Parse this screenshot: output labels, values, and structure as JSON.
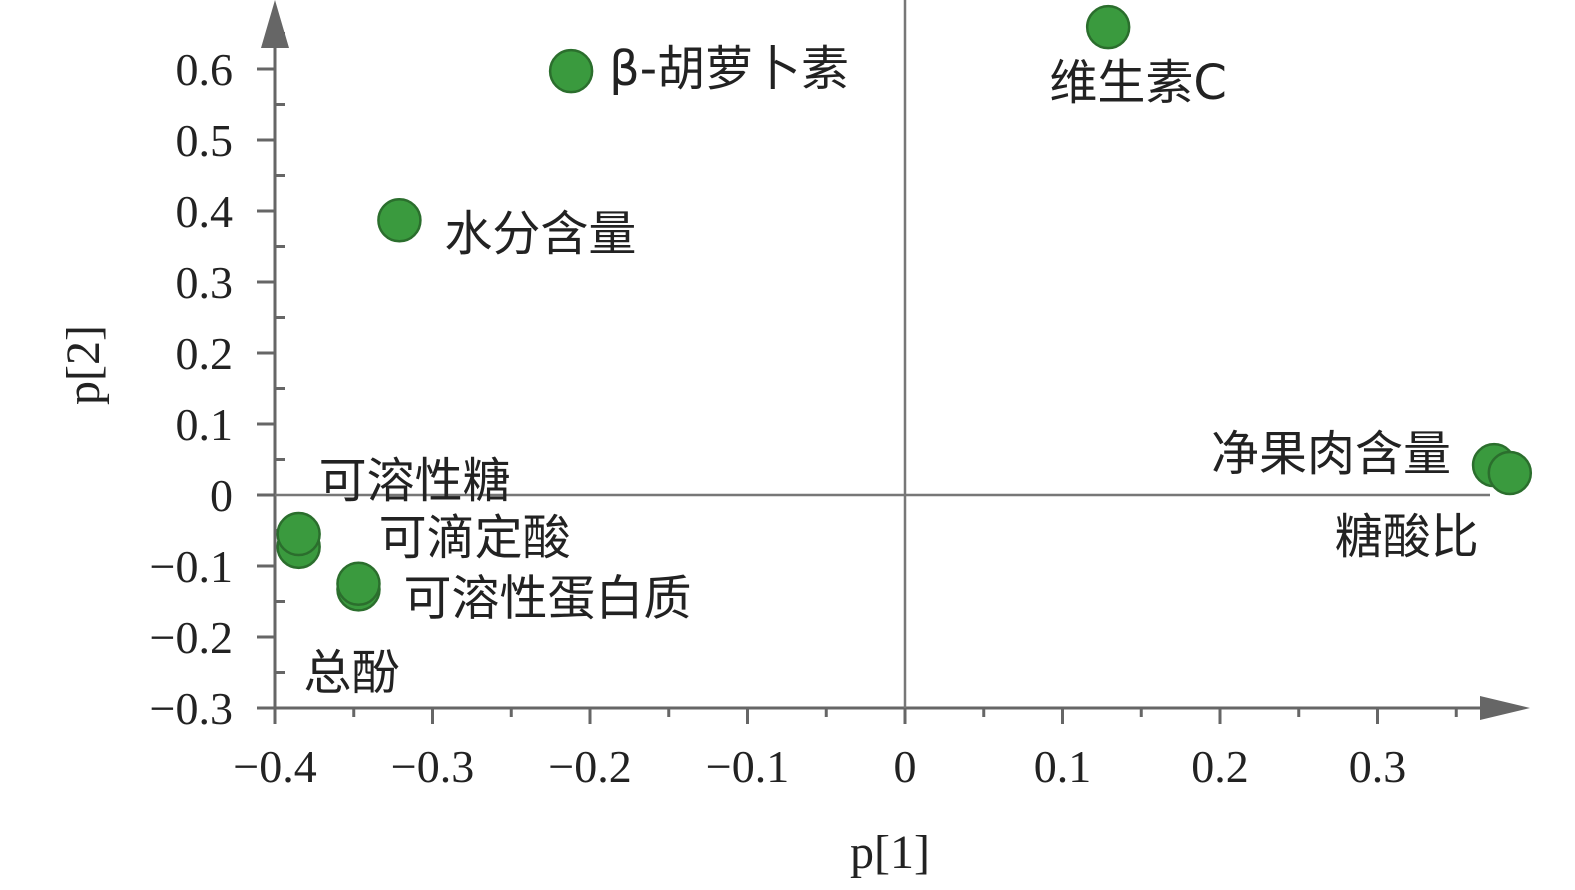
{
  "chart_data": {
    "type": "scatter",
    "title": "",
    "xlabel": "p[1]",
    "ylabel": "p[2]",
    "xlim": [
      -0.4,
      0.4
    ],
    "ylim": [
      -0.3,
      0.67
    ],
    "grid": false,
    "x_ticks": [
      {
        "value": -0.4,
        "label": "−0.4"
      },
      {
        "value": -0.3,
        "label": "−0.3"
      },
      {
        "value": -0.2,
        "label": "−0.2"
      },
      {
        "value": -0.1,
        "label": "−0.1"
      },
      {
        "value": 0,
        "label": "0"
      },
      {
        "value": 0.1,
        "label": "0.1"
      },
      {
        "value": 0.2,
        "label": "0.2"
      },
      {
        "value": 0.3,
        "label": "0.3"
      }
    ],
    "y_ticks": [
      {
        "value": 0.6,
        "label": "0.6"
      },
      {
        "value": 0.5,
        "label": "0.5"
      },
      {
        "value": 0.4,
        "label": "0.4"
      },
      {
        "value": 0.3,
        "label": "0.3"
      },
      {
        "value": 0.2,
        "label": "0.2"
      },
      {
        "value": 0.1,
        "label": "0.1"
      },
      {
        "value": 0,
        "label": "0"
      },
      {
        "value": -0.1,
        "label": "−0.1"
      },
      {
        "value": -0.2,
        "label": "−0.2"
      },
      {
        "value": -0.3,
        "label": "−0.3"
      }
    ],
    "marker_color": "#3a9a3e",
    "marker_edge_color": "#2b6e2d",
    "points": [
      {
        "label": "β-胡萝卜素",
        "x": -0.212,
        "y": 0.597
      },
      {
        "label": "维生素C",
        "x": 0.129,
        "y": 0.659
      },
      {
        "label": "水分含量",
        "x": -0.321,
        "y": 0.387
      },
      {
        "label": "可溶性糖",
        "x": -0.385,
        "y": -0.073
      },
      {
        "label": "可滴定酸",
        "x": -0.385,
        "y": -0.055
      },
      {
        "label": "可溶性蛋白质",
        "x": -0.347,
        "y": -0.133
      },
      {
        "label": "总酚",
        "x": -0.347,
        "y": -0.125
      },
      {
        "label": "净果肉含量",
        "x": 0.374,
        "y": 0.042
      },
      {
        "label": "糖酸比",
        "x": 0.384,
        "y": 0.031
      }
    ]
  }
}
